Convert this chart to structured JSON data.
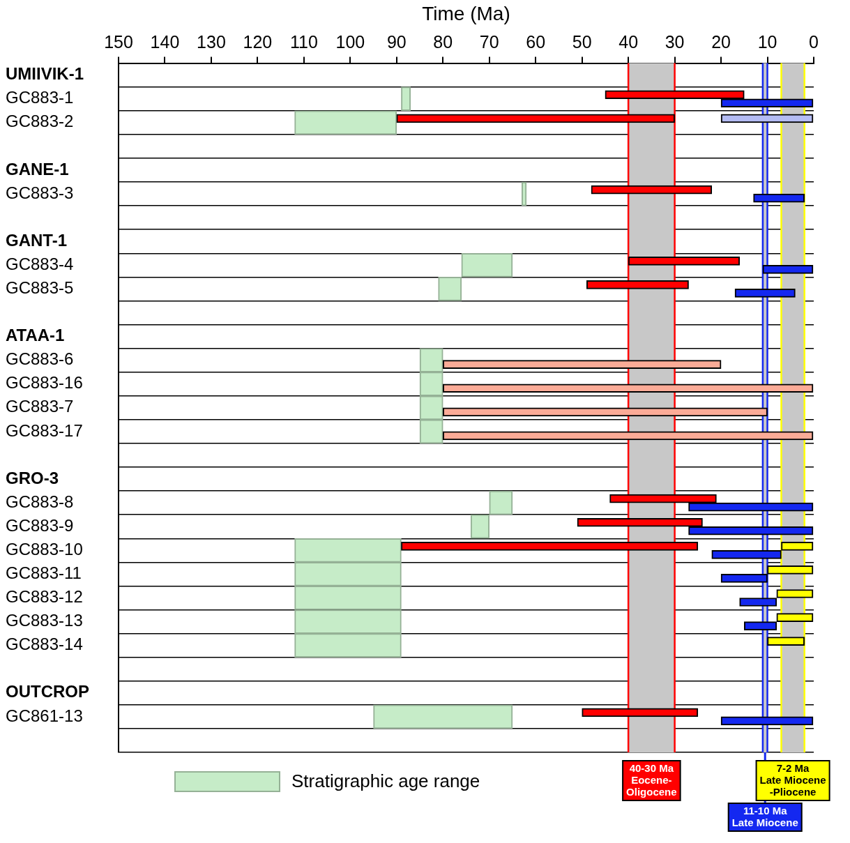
{
  "chart_data": {
    "type": "bar",
    "orientation": "horizontal",
    "xlabel": "Time (Ma)",
    "categories": [
      "UMIIVIK-1",
      "GC883-1",
      "GC883-2",
      null,
      "GANE-1",
      "GC883-3",
      null,
      "GANT-1",
      "GC883-4",
      "GC883-5",
      null,
      "ATAA-1",
      "GC883-6",
      "GC883-16",
      "GC883-7",
      "GC883-17",
      null,
      "GRO-3",
      "GC883-8",
      "GC883-9",
      "GC883-10",
      "GC883-11",
      "GC883-12",
      "GC883-13",
      "GC883-14",
      null,
      "OUTCROP",
      "GC861-13",
      null
    ],
    "xlim": [
      150,
      0
    ],
    "xticks": [
      150,
      140,
      130,
      120,
      110,
      100,
      90,
      80,
      70,
      60,
      50,
      40,
      30,
      20,
      10,
      0
    ],
    "grid": "y",
    "legend": "bottom",
    "series": [
      {
        "name": "Stratigraphic age range",
        "color": "#c6ecc8",
        "base": [
          null,
          87,
          90,
          null,
          null,
          62,
          null,
          null,
          65,
          76,
          null,
          null,
          80,
          80,
          80,
          80,
          null,
          null,
          65,
          70,
          89,
          89,
          89,
          89,
          89,
          null,
          null,
          65,
          null
        ],
        "values": [
          null,
          2,
          22,
          null,
          null,
          1,
          null,
          null,
          11,
          5,
          null,
          null,
          5,
          5,
          5,
          5,
          null,
          null,
          5,
          4,
          23,
          23,
          23,
          23,
          23,
          null,
          null,
          30,
          null
        ]
      },
      {
        "color": "#ff0000",
        "base": [
          null,
          15,
          30,
          null,
          null,
          22,
          null,
          null,
          16,
          27,
          null,
          null,
          null,
          null,
          null,
          null,
          null,
          null,
          21,
          24,
          25,
          null,
          null,
          null,
          null,
          null,
          null,
          25,
          null
        ],
        "values": [
          null,
          30,
          60,
          null,
          null,
          26,
          null,
          null,
          24,
          22,
          null,
          null,
          null,
          null,
          null,
          null,
          null,
          null,
          23,
          27,
          64,
          null,
          null,
          null,
          null,
          null,
          null,
          25,
          null
        ]
      },
      {
        "color": "#1428f0",
        "base": [
          null,
          0,
          null,
          null,
          null,
          2,
          null,
          null,
          0,
          4,
          null,
          null,
          null,
          null,
          null,
          null,
          null,
          null,
          0,
          0,
          7,
          10,
          8,
          8,
          null,
          null,
          null,
          0,
          null
        ],
        "values": [
          null,
          20,
          null,
          null,
          null,
          11,
          null,
          null,
          11,
          13,
          null,
          null,
          null,
          null,
          null,
          null,
          null,
          null,
          27,
          27,
          15,
          10,
          8,
          7,
          null,
          null,
          null,
          20,
          null
        ]
      },
      {
        "color": "#b4bcf4",
        "base": [
          null,
          null,
          0,
          null,
          null,
          null,
          null,
          null,
          null,
          null,
          null,
          null,
          null,
          null,
          null,
          null,
          null,
          null,
          null,
          null,
          null,
          null,
          null,
          null,
          null,
          null,
          null,
          null,
          null
        ],
        "values": [
          null,
          null,
          20,
          null,
          null,
          null,
          null,
          null,
          null,
          null,
          null,
          null,
          null,
          null,
          null,
          null,
          null,
          null,
          null,
          null,
          null,
          null,
          null,
          null,
          null,
          null,
          null,
          null,
          null
        ]
      },
      {
        "color": "#fbab97",
        "base": [
          null,
          null,
          null,
          null,
          null,
          null,
          null,
          null,
          null,
          null,
          null,
          null,
          20,
          0,
          10,
          0,
          null,
          null,
          null,
          null,
          null,
          null,
          null,
          null,
          null,
          null,
          null,
          null,
          null
        ],
        "values": [
          null,
          null,
          null,
          null,
          null,
          null,
          null,
          null,
          null,
          null,
          null,
          null,
          60,
          80,
          70,
          80,
          null,
          null,
          null,
          null,
          null,
          null,
          null,
          null,
          null,
          null,
          null,
          null,
          null
        ]
      },
      {
        "color": "#ffff00",
        "base": [
          null,
          null,
          null,
          null,
          null,
          null,
          null,
          null,
          null,
          null,
          null,
          null,
          null,
          null,
          null,
          null,
          null,
          null,
          null,
          null,
          0,
          0,
          0,
          0,
          2,
          null,
          null,
          null,
          null
        ],
        "values": [
          null,
          null,
          null,
          null,
          null,
          null,
          null,
          null,
          null,
          null,
          null,
          null,
          null,
          null,
          null,
          null,
          null,
          null,
          null,
          null,
          7,
          10,
          8,
          8,
          8,
          null,
          null,
          null,
          null
        ]
      }
    ],
    "bands": [
      {
        "axis": "x",
        "from": 40,
        "to": 30,
        "label": "40-30 Ma\nEocene-\nOligocene",
        "color": "#c8c8c8"
      },
      {
        "axis": "x",
        "from": 7,
        "to": 2,
        "label": "7-2 Ma\nLate Miocene\n-Pliocene",
        "color": "#c8c8c8"
      },
      {
        "axis": "x",
        "from": 11,
        "to": 10,
        "label": "11-10 Ma\nLate Miocene",
        "color": "#c8c8c8"
      }
    ],
    "ref_lines": [
      {
        "axis": "x",
        "value": 40,
        "color": "#ff0000"
      },
      {
        "axis": "x",
        "value": 30,
        "color": "#ff0000"
      },
      {
        "axis": "x",
        "value": 7,
        "color": "#ffff00"
      },
      {
        "axis": "x",
        "value": 2,
        "color": "#ffff00"
      },
      {
        "axis": "x",
        "value": 11,
        "color": "#1428f0"
      },
      {
        "axis": "x",
        "value": 10,
        "color": "#1428f0"
      }
    ]
  }
}
